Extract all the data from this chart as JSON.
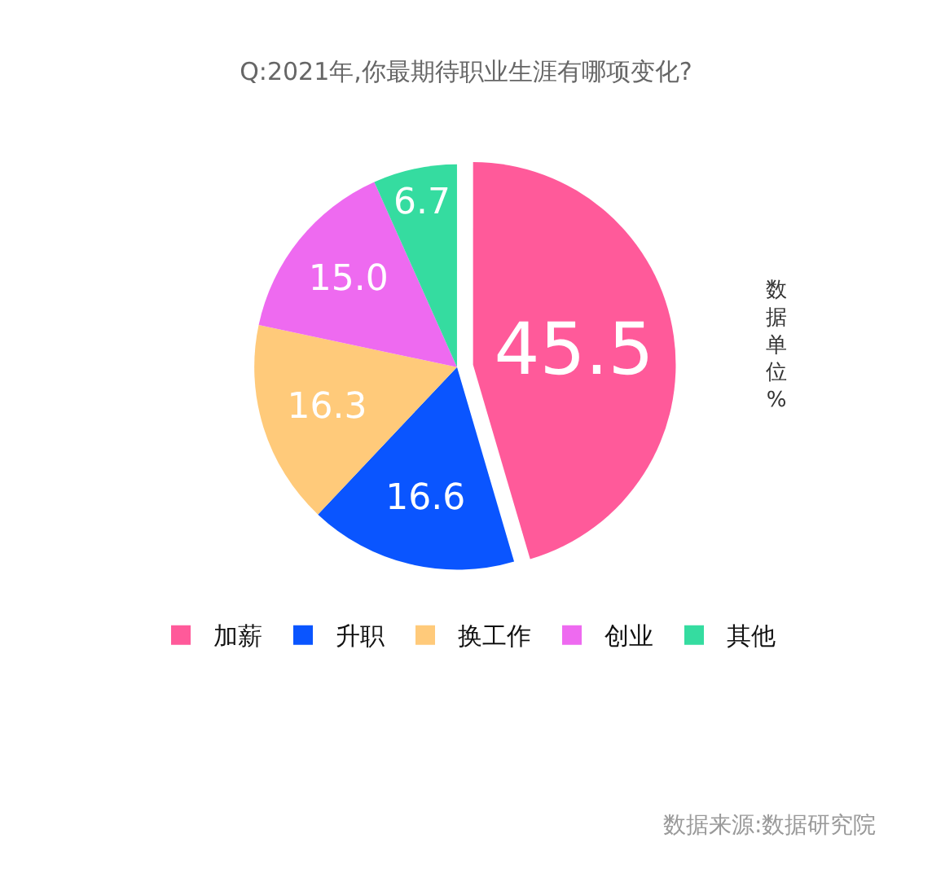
{
  "chart_data": {
    "type": "pie",
    "title": "Q:2021年,你最期待职业生涯有哪项变化?",
    "categories": [
      "加薪",
      "升职",
      "换工作",
      "创业",
      "其他"
    ],
    "values": [
      45.5,
      16.6,
      16.3,
      15.0,
      6.7
    ],
    "value_labels": [
      "45.5",
      "16.6",
      "16.3",
      "15.0",
      "6.7"
    ],
    "colors": [
      "#ff5a9a",
      "#0a55ff",
      "#ffca7a",
      "#ee6af0",
      "#35dca0"
    ],
    "legend": "bottom",
    "annotations": [
      "数据单位 %",
      "数据来源:数据研究院"
    ]
  }
}
